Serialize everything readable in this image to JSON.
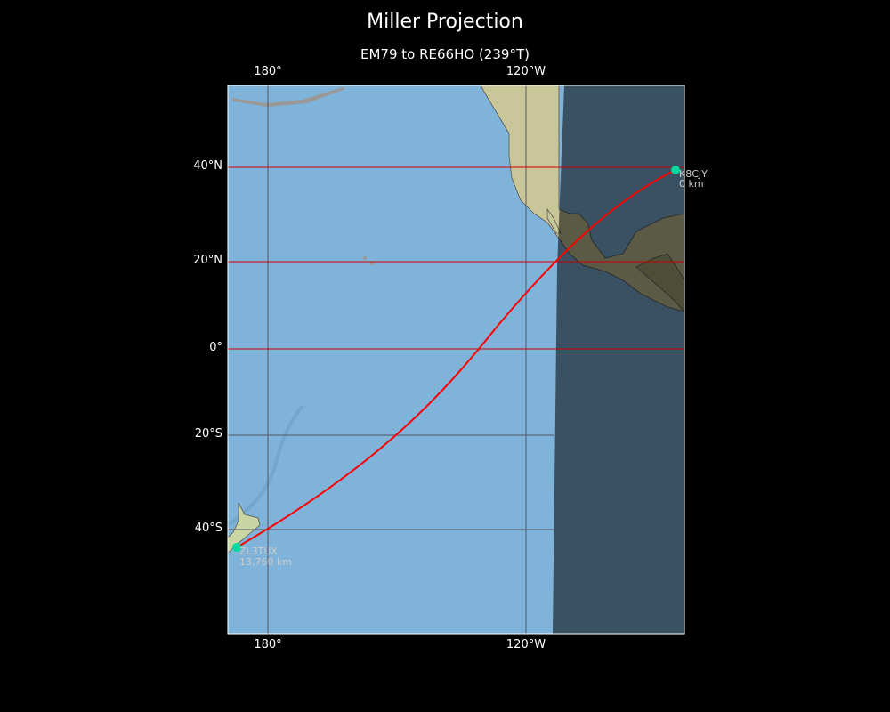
{
  "title": "Miller Projection",
  "subtitle": "EM79 to RE66HO (239°T)",
  "axes": {
    "x_ticks": [
      "180°",
      "120°W"
    ],
    "y_ticks": [
      "40°N",
      "20°N",
      "0°",
      "20°S",
      "40°S"
    ]
  },
  "stations": [
    {
      "call": "K8CJY",
      "distance": "0 km",
      "color": "#00d9a0"
    },
    {
      "call": "ZL3TUX",
      "distance": "13,760 km",
      "color": "#00d9a0"
    }
  ],
  "colors": {
    "path": "#ff0000",
    "day_grid": "#cc0000",
    "night_grid": "#555566",
    "ocean": "#7fb3d9",
    "night_overlay": "#000000"
  }
}
